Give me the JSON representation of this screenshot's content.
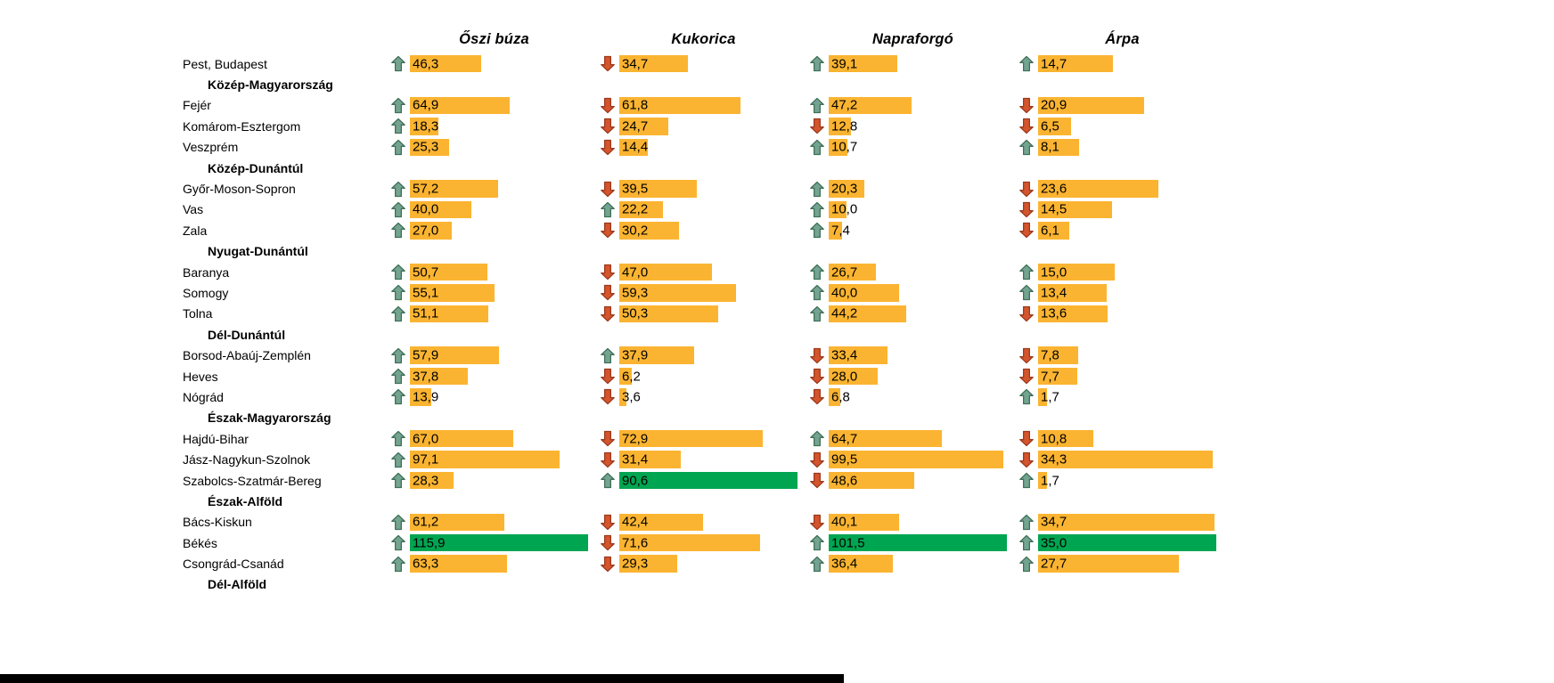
{
  "colors": {
    "bar_orange": "#FBB431",
    "bar_green": "#00A551",
    "arrow_up_fill": "#74A491",
    "arrow_up_stroke": "#3F7058",
    "arrow_down_fill": "#D4552D",
    "arrow_down_stroke": "#9B3A1E",
    "text": "#000000",
    "background": "#FFFFFF",
    "bottom_bar": "#000000"
  },
  "chart_data": {
    "type": "bar",
    "orientation": "horizontal",
    "title": "",
    "legend": "arrows indicate increase (green up) or decrease (red down); green bar marks the column maximum; values use decimal comma",
    "bar_scale": "each column scaled to its own maximum",
    "columns": [
      {
        "label": "Őszi búza",
        "max": 115.9
      },
      {
        "label": "Kukorica",
        "max": 90.6
      },
      {
        "label": "Napraforgó",
        "max": 101.5
      },
      {
        "label": "Árpa",
        "max": 35.0
      }
    ],
    "rows": [
      {
        "type": "county",
        "label": "Pest, Budapest",
        "cells": [
          {
            "display": "46,3",
            "value": 46.3,
            "trend": "up",
            "is_max": false
          },
          {
            "display": "34,7",
            "value": 34.7,
            "trend": "down",
            "is_max": false
          },
          {
            "display": "39,1",
            "value": 39.1,
            "trend": "up",
            "is_max": false
          },
          {
            "display": "14,7",
            "value": 14.7,
            "trend": "up",
            "is_max": false
          }
        ]
      },
      {
        "type": "region",
        "label": "Közép-Magyarország"
      },
      {
        "type": "county",
        "label": "Fejér",
        "cells": [
          {
            "display": "64,9",
            "value": 64.9,
            "trend": "up",
            "is_max": false
          },
          {
            "display": "61,8",
            "value": 61.8,
            "trend": "down",
            "is_max": false
          },
          {
            "display": "47,2",
            "value": 47.2,
            "trend": "up",
            "is_max": false
          },
          {
            "display": "20,9",
            "value": 20.9,
            "trend": "down",
            "is_max": false
          }
        ]
      },
      {
        "type": "county",
        "label": "Komárom-Esztergom",
        "cells": [
          {
            "display": "18,3",
            "value": 18.3,
            "trend": "up",
            "is_max": false
          },
          {
            "display": "24,7",
            "value": 24.7,
            "trend": "down",
            "is_max": false
          },
          {
            "display": "12,8",
            "value": 12.8,
            "trend": "down",
            "is_max": false
          },
          {
            "display": "6,5",
            "value": 6.5,
            "trend": "down",
            "is_max": false
          }
        ]
      },
      {
        "type": "county",
        "label": "Veszprém",
        "cells": [
          {
            "display": "25,3",
            "value": 25.3,
            "trend": "up",
            "is_max": false
          },
          {
            "display": "14,4",
            "value": 14.4,
            "trend": "down",
            "is_max": false
          },
          {
            "display": "10,7",
            "value": 10.7,
            "trend": "up",
            "is_max": false
          },
          {
            "display": "8,1",
            "value": 8.1,
            "trend": "up",
            "is_max": false
          }
        ]
      },
      {
        "type": "region",
        "label": "Közép-Dunántúl"
      },
      {
        "type": "county",
        "label": "Győr-Moson-Sopron",
        "cells": [
          {
            "display": "57,2",
            "value": 57.2,
            "trend": "up",
            "is_max": false
          },
          {
            "display": "39,5",
            "value": 39.5,
            "trend": "down",
            "is_max": false
          },
          {
            "display": "20,3",
            "value": 20.3,
            "trend": "up",
            "is_max": false
          },
          {
            "display": "23,6",
            "value": 23.6,
            "trend": "down",
            "is_max": false
          }
        ]
      },
      {
        "type": "county",
        "label": "Vas",
        "cells": [
          {
            "display": "40,0",
            "value": 40.0,
            "trend": "up",
            "is_max": false
          },
          {
            "display": "22,2",
            "value": 22.2,
            "trend": "up",
            "is_max": false
          },
          {
            "display": "10,0",
            "value": 10.0,
            "trend": "up",
            "is_max": false
          },
          {
            "display": "14,5",
            "value": 14.5,
            "trend": "down",
            "is_max": false
          }
        ]
      },
      {
        "type": "county",
        "label": "Zala",
        "cells": [
          {
            "display": "27,0",
            "value": 27.0,
            "trend": "up",
            "is_max": false
          },
          {
            "display": "30,2",
            "value": 30.2,
            "trend": "down",
            "is_max": false
          },
          {
            "display": "7,4",
            "value": 7.4,
            "trend": "up",
            "is_max": false
          },
          {
            "display": "6,1",
            "value": 6.1,
            "trend": "down",
            "is_max": false
          }
        ]
      },
      {
        "type": "region",
        "label": "Nyugat-Dunántúl"
      },
      {
        "type": "county",
        "label": "Baranya",
        "cells": [
          {
            "display": "50,7",
            "value": 50.7,
            "trend": "up",
            "is_max": false
          },
          {
            "display": "47,0",
            "value": 47.0,
            "trend": "down",
            "is_max": false
          },
          {
            "display": "26,7",
            "value": 26.7,
            "trend": "up",
            "is_max": false
          },
          {
            "display": "15,0",
            "value": 15.0,
            "trend": "up",
            "is_max": false
          }
        ]
      },
      {
        "type": "county",
        "label": "Somogy",
        "cells": [
          {
            "display": "55,1",
            "value": 55.1,
            "trend": "up",
            "is_max": false
          },
          {
            "display": "59,3",
            "value": 59.3,
            "trend": "down",
            "is_max": false
          },
          {
            "display": "40,0",
            "value": 40.0,
            "trend": "up",
            "is_max": false
          },
          {
            "display": "13,4",
            "value": 13.4,
            "trend": "up",
            "is_max": false
          }
        ]
      },
      {
        "type": "county",
        "label": "Tolna",
        "cells": [
          {
            "display": "51,1",
            "value": 51.1,
            "trend": "up",
            "is_max": false
          },
          {
            "display": "50,3",
            "value": 50.3,
            "trend": "down",
            "is_max": false
          },
          {
            "display": "44,2",
            "value": 44.2,
            "trend": "up",
            "is_max": false
          },
          {
            "display": "13,6",
            "value": 13.6,
            "trend": "down",
            "is_max": false
          }
        ]
      },
      {
        "type": "region",
        "label": "Dél-Dunántúl"
      },
      {
        "type": "county",
        "label": "Borsod-Abaúj-Zemplén",
        "cells": [
          {
            "display": "57,9",
            "value": 57.9,
            "trend": "up",
            "is_max": false
          },
          {
            "display": "37,9",
            "value": 37.9,
            "trend": "up",
            "is_max": false
          },
          {
            "display": "33,4",
            "value": 33.4,
            "trend": "down",
            "is_max": false
          },
          {
            "display": "7,8",
            "value": 7.8,
            "trend": "down",
            "is_max": false
          }
        ]
      },
      {
        "type": "county",
        "label": "Heves",
        "cells": [
          {
            "display": "37,8",
            "value": 37.8,
            "trend": "up",
            "is_max": false
          },
          {
            "display": "6,2",
            "value": 6.2,
            "trend": "down",
            "is_max": false
          },
          {
            "display": "28,0",
            "value": 28.0,
            "trend": "down",
            "is_max": false
          },
          {
            "display": "7,7",
            "value": 7.7,
            "trend": "down",
            "is_max": false
          }
        ]
      },
      {
        "type": "county",
        "label": "Nógrád",
        "cells": [
          {
            "display": "13,9",
            "value": 13.9,
            "trend": "up",
            "is_max": false
          },
          {
            "display": "3,6",
            "value": 3.6,
            "trend": "down",
            "is_max": false
          },
          {
            "display": "6,8",
            "value": 6.8,
            "trend": "down",
            "is_max": false
          },
          {
            "display": "1,7",
            "value": 1.7,
            "trend": "up",
            "is_max": false
          }
        ]
      },
      {
        "type": "region",
        "label": "Észak-Magyarország"
      },
      {
        "type": "county",
        "label": "Hajdú-Bihar",
        "cells": [
          {
            "display": "67,0",
            "value": 67.0,
            "trend": "up",
            "is_max": false
          },
          {
            "display": "72,9",
            "value": 72.9,
            "trend": "down",
            "is_max": false
          },
          {
            "display": "64,7",
            "value": 64.7,
            "trend": "up",
            "is_max": false
          },
          {
            "display": "10,8",
            "value": 10.8,
            "trend": "down",
            "is_max": false
          }
        ]
      },
      {
        "type": "county",
        "label": "Jász-Nagykun-Szolnok",
        "cells": [
          {
            "display": "97,1",
            "value": 97.1,
            "trend": "up",
            "is_max": false
          },
          {
            "display": "31,4",
            "value": 31.4,
            "trend": "down",
            "is_max": false
          },
          {
            "display": "99,5",
            "value": 99.5,
            "trend": "down",
            "is_max": false
          },
          {
            "display": "34,3",
            "value": 34.3,
            "trend": "down",
            "is_max": false
          }
        ]
      },
      {
        "type": "county",
        "label": "Szabolcs-Szatmár-Bereg",
        "cells": [
          {
            "display": "28,3",
            "value": 28.3,
            "trend": "up",
            "is_max": false
          },
          {
            "display": "90,6",
            "value": 90.6,
            "trend": "up",
            "is_max": true
          },
          {
            "display": "48,6",
            "value": 48.6,
            "trend": "down",
            "is_max": false
          },
          {
            "display": "1,7",
            "value": 1.7,
            "trend": "up",
            "is_max": false
          }
        ]
      },
      {
        "type": "region",
        "label": "Észak-Alföld"
      },
      {
        "type": "county",
        "label": "Bács-Kiskun",
        "cells": [
          {
            "display": "61,2",
            "value": 61.2,
            "trend": "up",
            "is_max": false
          },
          {
            "display": "42,4",
            "value": 42.4,
            "trend": "down",
            "is_max": false
          },
          {
            "display": "40,1",
            "value": 40.1,
            "trend": "down",
            "is_max": false
          },
          {
            "display": "34,7",
            "value": 34.7,
            "trend": "up",
            "is_max": false
          }
        ]
      },
      {
        "type": "county",
        "label": "Békés",
        "cells": [
          {
            "display": "115,9",
            "value": 115.9,
            "trend": "up",
            "is_max": true
          },
          {
            "display": "71,6",
            "value": 71.6,
            "trend": "down",
            "is_max": false
          },
          {
            "display": "101,5",
            "value": 101.5,
            "trend": "up",
            "is_max": true
          },
          {
            "display": "35,0",
            "value": 35.0,
            "trend": "up",
            "is_max": true
          }
        ]
      },
      {
        "type": "county",
        "label": "Csongrád-Csanád",
        "cells": [
          {
            "display": "63,3",
            "value": 63.3,
            "trend": "up",
            "is_max": false
          },
          {
            "display": "29,3",
            "value": 29.3,
            "trend": "down",
            "is_max": false
          },
          {
            "display": "36,4",
            "value": 36.4,
            "trend": "up",
            "is_max": false
          },
          {
            "display": "27,7",
            "value": 27.7,
            "trend": "up",
            "is_max": false
          }
        ]
      },
      {
        "type": "region",
        "label": "Dél-Alföld"
      }
    ]
  }
}
